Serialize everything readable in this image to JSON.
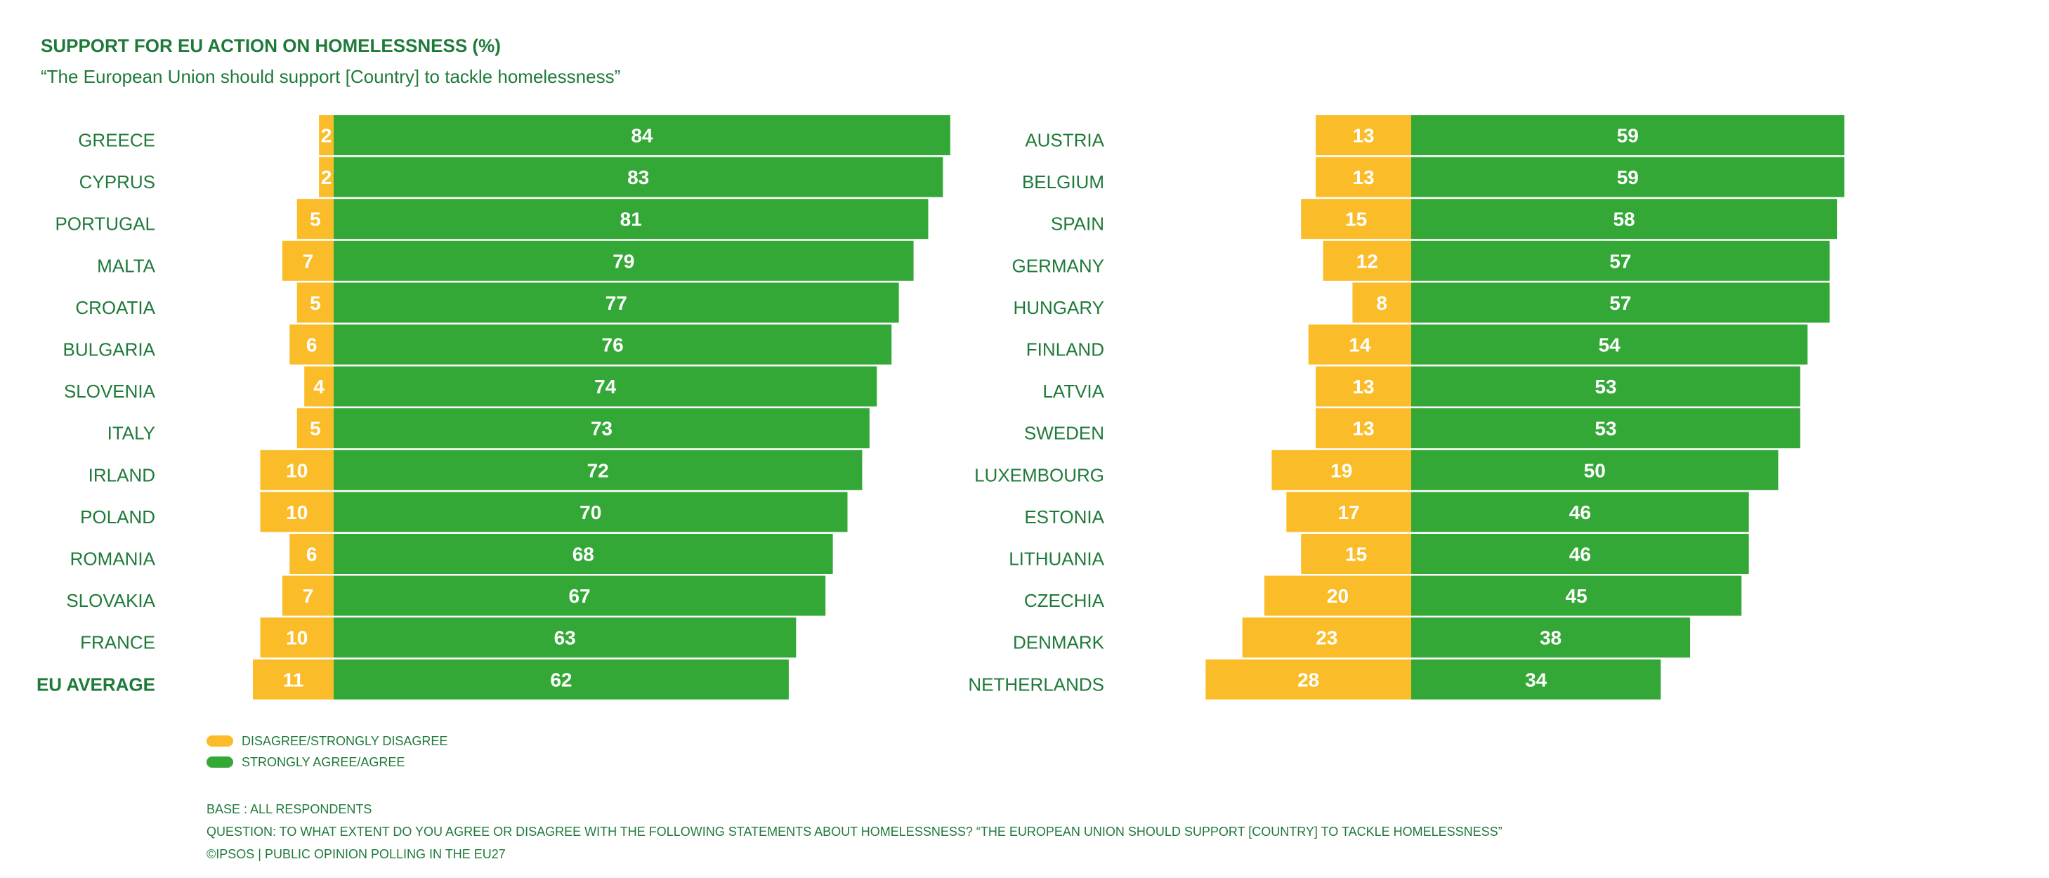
{
  "chart_data": {
    "type": "bar",
    "orientation": "horizontal-diverging",
    "title": "SUPPORT FOR EU ACTION ON HOMELESSNESS (%)",
    "subtitle": "“The European Union should support [Country] to tackle homelessness”",
    "series": [
      {
        "name": "DISAGREE/STRONGLY DISAGREE",
        "color": "#fbbc2a"
      },
      {
        "name": "STRONGLY AGREE/AGREE",
        "color": "#34a836"
      }
    ],
    "panels": [
      {
        "rows": [
          {
            "country": "GREECE",
            "disagree": 2,
            "agree": 84
          },
          {
            "country": "CYPRUS",
            "disagree": 2,
            "agree": 83
          },
          {
            "country": "PORTUGAL",
            "disagree": 5,
            "agree": 81
          },
          {
            "country": "MALTA",
            "disagree": 7,
            "agree": 79
          },
          {
            "country": "CROATIA",
            "disagree": 5,
            "agree": 77
          },
          {
            "country": "BULGARIA",
            "disagree": 6,
            "agree": 76
          },
          {
            "country": "SLOVENIA",
            "disagree": 4,
            "agree": 74
          },
          {
            "country": "ITALY",
            "disagree": 5,
            "agree": 73
          },
          {
            "country": "IRLAND",
            "disagree": 10,
            "agree": 72
          },
          {
            "country": "POLAND",
            "disagree": 10,
            "agree": 70
          },
          {
            "country": "ROMANIA",
            "disagree": 6,
            "agree": 68
          },
          {
            "country": "SLOVAKIA",
            "disagree": 7,
            "agree": 67
          },
          {
            "country": "FRANCE",
            "disagree": 10,
            "agree": 63
          },
          {
            "country": "EU AVERAGE",
            "disagree": 11,
            "agree": 62,
            "highlight": true
          }
        ]
      },
      {
        "rows": [
          {
            "country": "AUSTRIA",
            "disagree": 13,
            "agree": 59
          },
          {
            "country": "BELGIUM",
            "disagree": 13,
            "agree": 59
          },
          {
            "country": "SPAIN",
            "disagree": 15,
            "agree": 58
          },
          {
            "country": "GERMANY",
            "disagree": 12,
            "agree": 57
          },
          {
            "country": "HUNGARY",
            "disagree": 8,
            "agree": 57
          },
          {
            "country": "FINLAND",
            "disagree": 14,
            "agree": 54
          },
          {
            "country": "LATVIA",
            "disagree": 13,
            "agree": 53
          },
          {
            "country": "SWEDEN",
            "disagree": 13,
            "agree": 53
          },
          {
            "country": "LUXEMBOURG",
            "disagree": 19,
            "agree": 50
          },
          {
            "country": "ESTONIA",
            "disagree": 17,
            "agree": 46
          },
          {
            "country": "LITHUANIA",
            "disagree": 15,
            "agree": 46
          },
          {
            "country": "CZECHIA",
            "disagree": 20,
            "agree": 45
          },
          {
            "country": "DENMARK",
            "disagree": 23,
            "agree": 38
          },
          {
            "country": "NETHERLANDS",
            "disagree": 28,
            "agree": 34
          }
        ]
      }
    ]
  },
  "notes": {
    "base": "BASE : ALL RESPONDENTS",
    "question": "QUESTION: TO WHAT EXTENT DO YOU AGREE OR DISAGREE WITH THE FOLLOWING STATEMENTS ABOUT HOMELESSNESS? “THE EUROPEAN UNION SHOULD SUPPORT [COUNTRY] TO TACKLE HOMELESSNESS”",
    "credit": "©IPSOS | PUBLIC OPINION POLLING IN THE EU27"
  }
}
